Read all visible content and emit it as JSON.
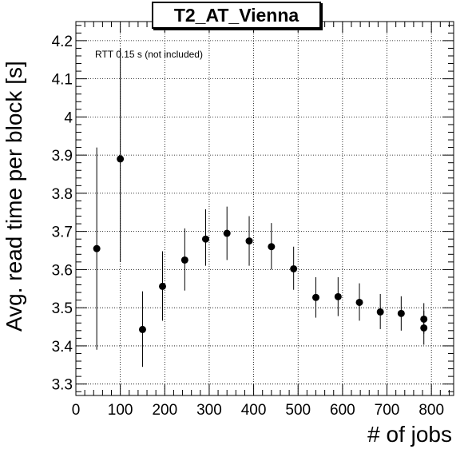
{
  "chart_data": {
    "type": "scatter",
    "title": "T2_AT_Vienna",
    "xlabel": "# of jobs",
    "ylabel": "Avg. read time per block [s]",
    "annotation": "RTT 0.15 s (not included)",
    "xlim": [
      0,
      850
    ],
    "ylim": [
      3.27,
      4.25
    ],
    "x_ticks": [
      0,
      100,
      200,
      300,
      400,
      500,
      600,
      700,
      800
    ],
    "y_ticks": [
      3.3,
      3.4,
      3.5,
      3.6,
      3.7,
      3.8,
      3.9,
      4.0,
      4.1,
      4.2
    ],
    "y_tick_labels": [
      "3.3",
      "3.4",
      "3.5",
      "3.6",
      "3.7",
      "3.8",
      "3.9",
      "4",
      "4.1",
      "4.2"
    ],
    "grid": true,
    "points": [
      {
        "x": 47,
        "y": 3.655,
        "ylow": 3.39,
        "yhigh": 3.92
      },
      {
        "x": 100,
        "y": 3.89,
        "ylow": 3.62,
        "yhigh": 4.18
      },
      {
        "x": 150,
        "y": 3.443,
        "ylow": 3.345,
        "yhigh": 3.543
      },
      {
        "x": 195,
        "y": 3.556,
        "ylow": 3.466,
        "yhigh": 3.648
      },
      {
        "x": 245,
        "y": 3.625,
        "ylow": 3.545,
        "yhigh": 3.708
      },
      {
        "x": 292,
        "y": 3.68,
        "ylow": 3.61,
        "yhigh": 3.758
      },
      {
        "x": 340,
        "y": 3.695,
        "ylow": 3.625,
        "yhigh": 3.765
      },
      {
        "x": 390,
        "y": 3.675,
        "ylow": 3.61,
        "yhigh": 3.74
      },
      {
        "x": 440,
        "y": 3.66,
        "ylow": 3.6,
        "yhigh": 3.722
      },
      {
        "x": 490,
        "y": 3.602,
        "ylow": 3.547,
        "yhigh": 3.66
      },
      {
        "x": 540,
        "y": 3.527,
        "ylow": 3.474,
        "yhigh": 3.58
      },
      {
        "x": 590,
        "y": 3.529,
        "ylow": 3.478,
        "yhigh": 3.58
      },
      {
        "x": 638,
        "y": 3.514,
        "ylow": 3.466,
        "yhigh": 3.564
      },
      {
        "x": 685,
        "y": 3.489,
        "ylow": 3.444,
        "yhigh": 3.536
      },
      {
        "x": 732,
        "y": 3.485,
        "ylow": 3.44,
        "yhigh": 3.53
      },
      {
        "x": 783,
        "y": 3.47,
        "ylow": 3.432,
        "yhigh": 3.512
      },
      {
        "x": 783,
        "y": 3.447,
        "ylow": 3.403,
        "yhigh": 3.492
      }
    ]
  }
}
